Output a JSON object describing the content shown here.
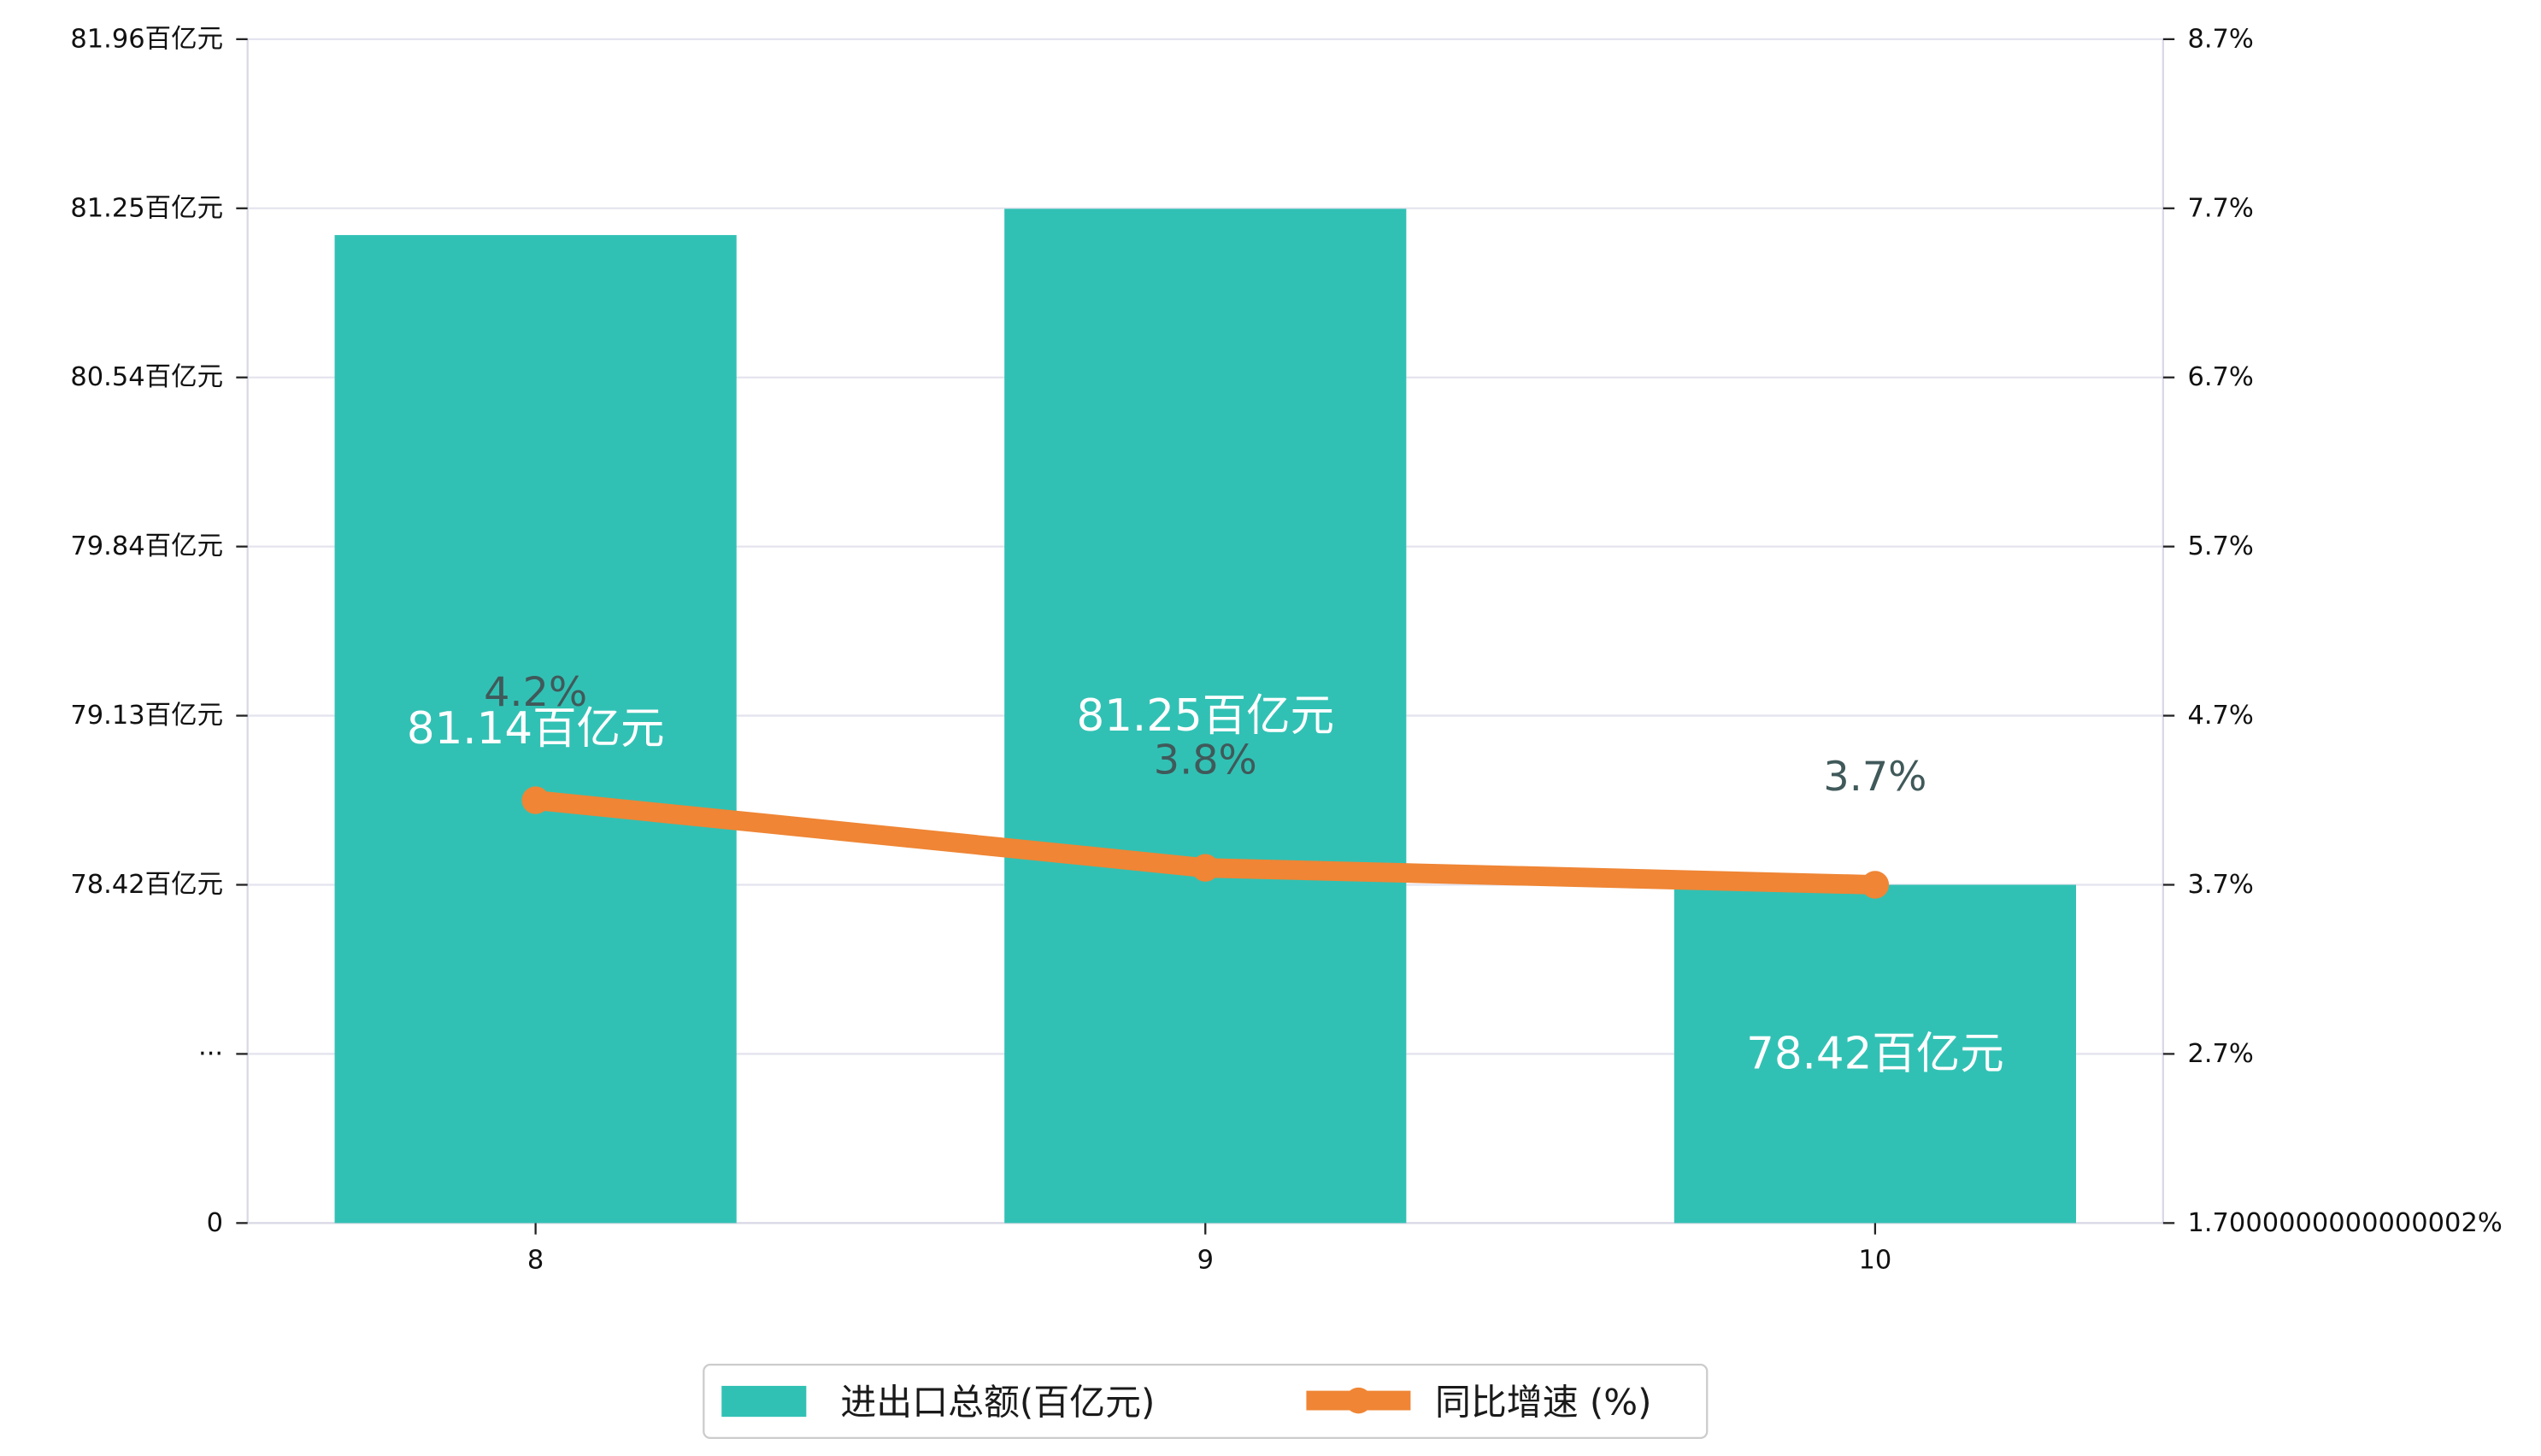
{
  "chart_data": {
    "type": "bar",
    "title": "",
    "xlabel": "",
    "categories": [
      "8",
      "9",
      "10"
    ],
    "series": [
      {
        "name": "进出口总额(百亿元)",
        "type": "bar",
        "axis": "left",
        "values": [
          81.14,
          81.25,
          78.42
        ],
        "labels": [
          "81.14百亿元",
          "81.25百亿元",
          "78.42百亿元"
        ],
        "color": "#31c1b4"
      },
      {
        "name": "同比增速 (%)",
        "type": "line",
        "axis": "right",
        "values": [
          4.2,
          3.8,
          3.7
        ],
        "labels": [
          "4.2%",
          "3.8%",
          "3.7%"
        ],
        "color": "#ef8535"
      }
    ],
    "y_left": {
      "tick_labels": [
        "0",
        "···",
        "78.42百亿元",
        "79.13百亿元",
        "79.84百亿元",
        "80.54百亿元",
        "81.25百亿元",
        "81.96百亿元"
      ],
      "tick_values": [
        null,
        null,
        78.42,
        79.13,
        79.84,
        80.54,
        81.25,
        81.96
      ]
    },
    "y_right": {
      "tick_labels": [
        "1.7000000000000002%",
        "2.7%",
        "3.7%",
        "4.7%",
        "5.7%",
        "6.7%",
        "7.7%",
        "8.7%"
      ],
      "ylim": [
        1.7,
        8.7
      ]
    },
    "grid": true,
    "legend_position": "bottom-center",
    "label_color": "#40595a"
  }
}
